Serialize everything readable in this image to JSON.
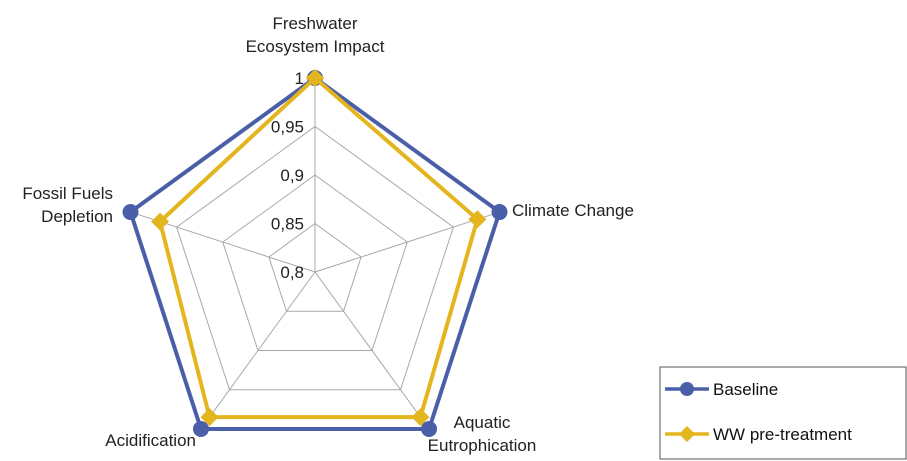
{
  "chart_data": {
    "type": "radar",
    "axes": [
      "Freshwater Ecosystem Impact",
      "Climate Change",
      "Aquatic Eutrophication",
      "Acidification",
      "Fossil Fuels Depletion"
    ],
    "axis_label_lines": [
      [
        "Freshwater",
        "Ecosystem Impact"
      ],
      [
        "Climate Change"
      ],
      [
        "Aquatic",
        "Eutrophication"
      ],
      [
        "Acidification"
      ],
      [
        "Fossil Fuels",
        "Depletion"
      ]
    ],
    "rlim": [
      0.8,
      1
    ],
    "ticks": [
      0.8,
      0.85,
      0.9,
      0.95,
      1
    ],
    "tick_labels": [
      "0,8",
      "0,85",
      "0,9",
      "0,95",
      "1"
    ],
    "grid": true,
    "legend": "bottom-right",
    "series": [
      {
        "name": "Baseline",
        "values": [
          1,
          1,
          1,
          1,
          1
        ],
        "color": "#4a5fa8",
        "marker": "circle"
      },
      {
        "name": "WW pre-treatment",
        "values": [
          1,
          0.976,
          0.985,
          0.985,
          0.968
        ],
        "color": "#e3b51e",
        "marker": "diamond"
      }
    ]
  }
}
